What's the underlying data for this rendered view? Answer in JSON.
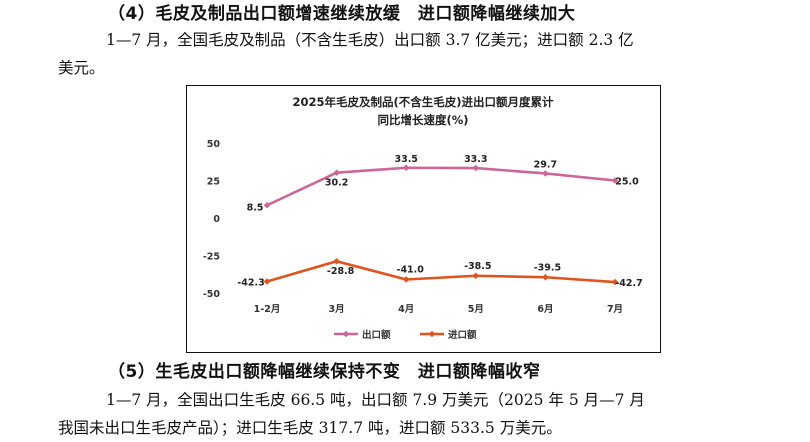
{
  "section4": {
    "heading": "（4）毛皮及制品出口额增速继续放缓　进口额降幅继续加大",
    "para_line1": "1—7 月，全国毛皮及制品（不含生毛皮）出口额 3.7 亿美元；进口额 2.3 亿",
    "para_line2": "美元。"
  },
  "chart_data": {
    "type": "line",
    "title_line1": "2025年毛皮及制品(不含生毛皮)进出口额月度累计",
    "title_line2": "同比增长速度(%)",
    "categories": [
      "1-2月",
      "3月",
      "4月",
      "5月",
      "6月",
      "7月"
    ],
    "series": [
      {
        "name": "出口额",
        "color": "#cc6699",
        "values": [
          8.5,
          30.2,
          33.5,
          33.3,
          29.7,
          25.0
        ],
        "labels": [
          "8.5",
          "30.2",
          "33.5",
          "33.3",
          "29.7",
          "25.0"
        ]
      },
      {
        "name": "进口额",
        "color": "#e0531c",
        "values": [
          -42.3,
          -28.8,
          -41.0,
          -38.5,
          -39.5,
          -42.7
        ],
        "labels": [
          "-42.3",
          "-28.8",
          "-41.0",
          "-38.5",
          "-39.5",
          "-42.7"
        ]
      }
    ],
    "ylim": [
      -50,
      50
    ],
    "yticks": [
      50,
      25,
      0,
      -25,
      -50
    ],
    "ytick_labels": [
      "50",
      "25",
      "0",
      "-25",
      "-50"
    ],
    "legend_position": "bottom",
    "grid": false
  },
  "section5": {
    "heading": "（5）生毛皮出口额降幅继续保持不变　进口额降幅收窄",
    "para_line1": "1—7 月，全国出口生毛皮 66.5 吨，出口额 7.9 万美元（2025 年 5 月—7 月",
    "para_line2": "我国未出口生毛皮产品）；进口生毛皮 317.7 吨，进口额 533.5 万美元。"
  }
}
